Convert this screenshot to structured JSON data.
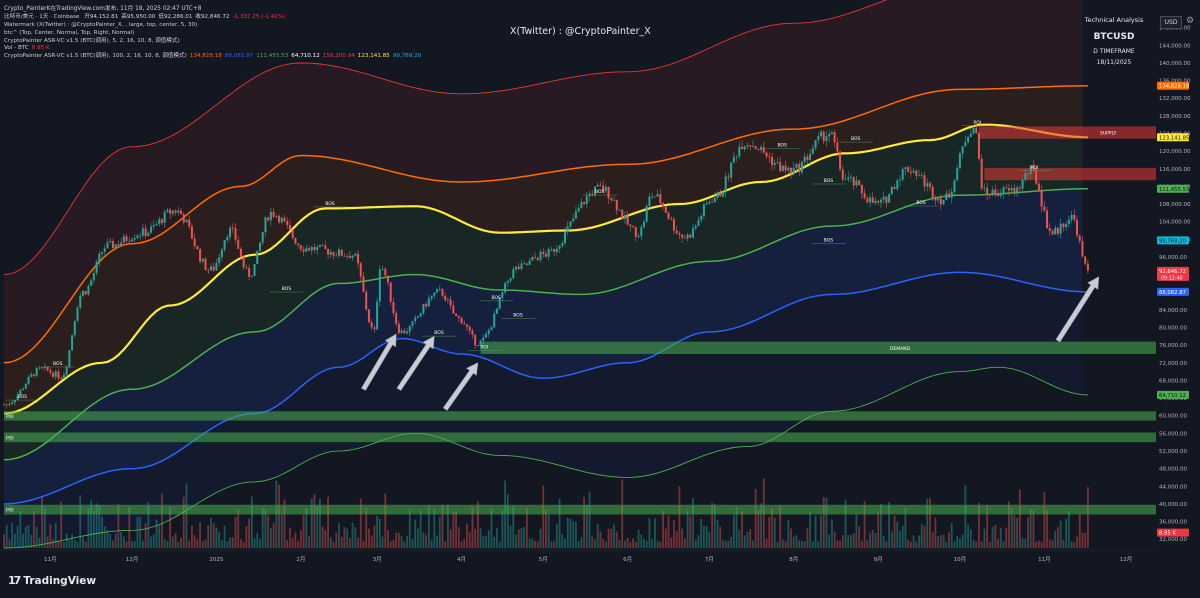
{
  "header": {
    "title_line": "比特币/美元 · 1天 · Coinbase",
    "ohlc": [
      {
        "label": "开",
        "value": "94,152.81",
        "color": "#d1d4dc"
      },
      {
        "label": "高",
        "value": "95,950.00",
        "color": "#d1d4dc"
      },
      {
        "label": "低",
        "value": "92,286.01",
        "color": "#d1d4dc"
      },
      {
        "label": "收",
        "value": "92,846.72",
        "color": "#d1d4dc"
      },
      {
        "label": "",
        "value": "-1,337.25 (-1.42%)",
        "color": "#f23645"
      }
    ],
    "indicators": [
      {
        "text": "Watermark (X(Twitter) : @CryptoPainter_X, , large, top, center, 5, 30)",
        "values": []
      },
      {
        "text": "btc^ (Top, Center, Normal, Top, Right, Normal)",
        "values": []
      },
      {
        "text": "CryptoPainter ASR-VC v1.5 (BTC(调用), 5, 2, 16, 10, 8, 调值模式)",
        "values": []
      },
      {
        "text": "Vol - BTC",
        "values": [
          {
            "v": "8.95 K",
            "c": "#f23645"
          }
        ]
      },
      {
        "text": "CryptoPainter ASR-VC v1.5 (BTC(调用), 100, 2, 16, 10, 8, 调值模式)",
        "values": [
          {
            "v": "134,828.18",
            "c": "#ff6d00"
          },
          {
            "v": "88,082.87",
            "c": "#2962ff"
          },
          {
            "v": "111,455.53",
            "c": "#4caf50"
          },
          {
            "v": "64,710.12",
            "c": "#ffffff"
          },
          {
            "v": "158,200.94",
            "c": "#f23645"
          },
          {
            "v": "123,141.85",
            "c": "#ffeb3b"
          },
          {
            "v": "99,769.20",
            "c": "#00bcd4"
          }
        ]
      }
    ],
    "snapshot": "Crypto_PainterK在TradingView.com发布, 11月 18, 2025 02:47 UTC+8"
  },
  "watermark": "X(Twitter) : @CryptoPainter_X",
  "infobox": {
    "label": "Technical Analysis",
    "symbol": "BTCUSD",
    "timeframe": "D TIMEFRAME",
    "date": "18/11/2025"
  },
  "currency": "USD",
  "brand": "TradingView",
  "chart_data": {
    "type": "line",
    "title": "",
    "ylim": [
      30000,
      152000
    ],
    "y_ticks": [
      {
        "value": 148000,
        "label": "148,000.00"
      },
      {
        "value": 144000,
        "label": "144,000.00"
      },
      {
        "value": 140000,
        "label": "140,000.00"
      },
      {
        "value": 136000,
        "label": "136,000.00"
      },
      {
        "value": 132000,
        "label": "132,000.00"
      },
      {
        "value": 128000,
        "label": "128,000.00"
      },
      {
        "value": 124000,
        "label": "124,000.00"
      },
      {
        "value": 120000,
        "label": "120,000.00"
      },
      {
        "value": 116000,
        "label": "116,000.00"
      },
      {
        "value": 112000,
        "label": "112,000.00"
      },
      {
        "value": 108000,
        "label": "108,000.00"
      },
      {
        "value": 104000,
        "label": "104,000.00"
      },
      {
        "value": 100000,
        "label": "100,000.00"
      },
      {
        "value": 96000,
        "label": "96,000.00"
      },
      {
        "value": 92000,
        "label": "92,000.00"
      },
      {
        "value": 88000,
        "label": "88,000.00"
      },
      {
        "value": 84000,
        "label": "84,000.00"
      },
      {
        "value": 80000,
        "label": "80,000.00"
      },
      {
        "value": 76000,
        "label": "76,000.00"
      },
      {
        "value": 72000,
        "label": "72,000.00"
      },
      {
        "value": 68000,
        "label": "68,000.00"
      },
      {
        "value": 64000,
        "label": "64,000.00"
      },
      {
        "value": 60000,
        "label": "60,000.00"
      },
      {
        "value": 56000,
        "label": "56,000.00"
      },
      {
        "value": 52000,
        "label": "52,000.00"
      },
      {
        "value": 48000,
        "label": "48,000.00"
      },
      {
        "value": 44000,
        "label": "44,000.00"
      },
      {
        "value": 40000,
        "label": "40,000.00"
      },
      {
        "value": 36000,
        "label": "36,000.00"
      },
      {
        "value": 32000,
        "label": "32,000.00"
      }
    ],
    "x_ticks": [
      {
        "date": "2024-11-01",
        "label": "11月"
      },
      {
        "date": "2024-12-01",
        "label": "12月"
      },
      {
        "date": "2025-01-01",
        "label": "2025"
      },
      {
        "date": "2025-02-01",
        "label": "2月"
      },
      {
        "date": "2025-03-01",
        "label": "3月"
      },
      {
        "date": "2025-04-01",
        "label": "4月"
      },
      {
        "date": "2025-05-01",
        "label": "5月"
      },
      {
        "date": "2025-06-01",
        "label": "6月"
      },
      {
        "date": "2025-07-01",
        "label": "7月"
      },
      {
        "date": "2025-08-01",
        "label": "8月"
      },
      {
        "date": "2025-09-01",
        "label": "9月"
      },
      {
        "date": "2025-10-01",
        "label": "10月"
      },
      {
        "date": "2025-11-01",
        "label": "11月"
      },
      {
        "date": "2025-12-01",
        "label": "12月"
      }
    ],
    "x_range": [
      "2024-10-15",
      "2025-12-12"
    ],
    "price_waypoints": [
      [
        "2024-10-15",
        62500
      ],
      [
        "2024-10-29",
        70500
      ],
      [
        "2024-11-05",
        69000
      ],
      [
        "2024-11-13",
        88000
      ],
      [
        "2024-11-22",
        98500
      ],
      [
        "2024-12-05",
        101500
      ],
      [
        "2024-12-17",
        106500
      ],
      [
        "2024-12-30",
        93000
      ],
      [
        "2025-01-06",
        102000
      ],
      [
        "2025-01-13",
        92000
      ],
      [
        "2025-01-21",
        106000
      ],
      [
        "2025-02-03",
        98000
      ],
      [
        "2025-02-20",
        96500
      ],
      [
        "2025-02-28",
        79000
      ],
      [
        "2025-03-02",
        94000
      ],
      [
        "2025-03-10",
        79000
      ],
      [
        "2025-03-24",
        88000
      ],
      [
        "2025-03-31",
        82000
      ],
      [
        "2025-04-07",
        76500
      ],
      [
        "2025-04-22",
        93500
      ],
      [
        "2025-05-01",
        96500
      ],
      [
        "2025-05-22",
        111500
      ],
      [
        "2025-06-05",
        101500
      ],
      [
        "2025-06-10",
        110000
      ],
      [
        "2025-06-22",
        100500
      ],
      [
        "2025-07-03",
        109500
      ],
      [
        "2025-07-14",
        122000
      ],
      [
        "2025-07-31",
        115500
      ],
      [
        "2025-08-14",
        124000
      ],
      [
        "2025-08-20",
        113500
      ],
      [
        "2025-09-01",
        108000
      ],
      [
        "2025-09-12",
        116000
      ],
      [
        "2025-09-25",
        109000
      ],
      [
        "2025-10-06",
        125500
      ],
      [
        "2025-10-10",
        110500
      ],
      [
        "2025-10-21",
        111000
      ],
      [
        "2025-10-27",
        115500
      ],
      [
        "2025-11-04",
        101500
      ],
      [
        "2025-11-11",
        105000
      ],
      [
        "2025-11-17",
        92846.72
      ]
    ],
    "band_series": [
      {
        "name": "outer-upper",
        "color": "#e53935",
        "points": [
          [
            "2024-10-15",
            92000
          ],
          [
            "2024-12-01",
            121000
          ],
          [
            "2025-02-01",
            140000
          ],
          [
            "2025-04-01",
            133000
          ],
          [
            "2025-06-01",
            138000
          ],
          [
            "2025-08-01",
            149000
          ],
          [
            "2025-10-01",
            158000
          ],
          [
            "2025-12-12",
            165000
          ]
        ]
      },
      {
        "name": "orange-upper",
        "color": "#ff6d00",
        "points": [
          [
            "2024-10-15",
            72000
          ],
          [
            "2024-12-01",
            99000
          ],
          [
            "2025-01-10",
            112000
          ],
          [
            "2025-02-01",
            119000
          ],
          [
            "2025-04-01",
            113000
          ],
          [
            "2025-06-01",
            117000
          ],
          [
            "2025-08-01",
            125000
          ],
          [
            "2025-10-01",
            134000
          ],
          [
            "2025-11-17",
            134800
          ]
        ]
      },
      {
        "name": "yellow-mid",
        "color": "#ffeb3b",
        "points": [
          [
            "2024-10-15",
            60500
          ],
          [
            "2024-11-20",
            72000
          ],
          [
            "2024-12-15",
            85000
          ],
          [
            "2025-01-15",
            96500
          ],
          [
            "2025-02-10",
            107000
          ],
          [
            "2025-03-15",
            107500
          ],
          [
            "2025-04-15",
            101500
          ],
          [
            "2025-05-10",
            102000
          ],
          [
            "2025-06-20",
            108000
          ],
          [
            "2025-07-20",
            113000
          ],
          [
            "2025-08-20",
            119500
          ],
          [
            "2025-09-20",
            122500
          ],
          [
            "2025-10-10",
            126000
          ],
          [
            "2025-11-17",
            123141.85
          ]
        ]
      },
      {
        "name": "green-lower",
        "color": "#4caf50",
        "points": [
          [
            "2024-10-15",
            50000
          ],
          [
            "2024-12-01",
            66000
          ],
          [
            "2025-01-15",
            79000
          ],
          [
            "2025-02-15",
            90000
          ],
          [
            "2025-03-15",
            92000
          ],
          [
            "2025-04-15",
            88500
          ],
          [
            "2025-05-15",
            87500
          ],
          [
            "2025-07-01",
            95000
          ],
          [
            "2025-08-15",
            103000
          ],
          [
            "2025-10-01",
            110000
          ],
          [
            "2025-11-17",
            111455.53
          ]
        ]
      },
      {
        "name": "blue-lower",
        "color": "#2962ff",
        "points": [
          [
            "2024-10-15",
            40000
          ],
          [
            "2024-12-01",
            48000
          ],
          [
            "2025-01-15",
            60500
          ],
          [
            "2025-02-15",
            71000
          ],
          [
            "2025-03-10",
            77500
          ],
          [
            "2025-04-01",
            74000
          ],
          [
            "2025-05-01",
            68500
          ],
          [
            "2025-06-01",
            72000
          ],
          [
            "2025-07-01",
            79000
          ],
          [
            "2025-08-15",
            87500
          ],
          [
            "2025-10-01",
            92500
          ],
          [
            "2025-11-17",
            88082.87
          ]
        ]
      },
      {
        "name": "green-outer-lower",
        "color": "#4caf50",
        "points": [
          [
            "2024-10-15",
            30000
          ],
          [
            "2024-12-01",
            34000
          ],
          [
            "2025-01-15",
            45000
          ],
          [
            "2025-02-15",
            52000
          ],
          [
            "2025-03-15",
            56000
          ],
          [
            "2025-04-15",
            51000
          ],
          [
            "2025-06-01",
            46000
          ],
          [
            "2025-07-15",
            53000
          ],
          [
            "2025-08-15",
            61000
          ],
          [
            "2025-10-01",
            70000
          ],
          [
            "2025-10-15",
            71000
          ],
          [
            "2025-11-17",
            64710.12
          ]
        ]
      }
    ],
    "zones": [
      {
        "label": "SUPPLY",
        "y1": 122800,
        "y2": 125600,
        "from": "2025-10-08",
        "color": "#e53935"
      },
      {
        "label": "",
        "y1": 113400,
        "y2": 116200,
        "from": "2025-10-10",
        "color": "#e53935"
      },
      {
        "label": "DEMAND",
        "y1": 74000,
        "y2": 76800,
        "from": "2025-04-08",
        "color": "#4caf50"
      },
      {
        "label": "POI",
        "y1": 58900,
        "y2": 61000,
        "from": "2024-10-15",
        "color": "#4caf50"
      },
      {
        "label": "POI",
        "y1": 54000,
        "y2": 56200,
        "from": "2024-10-15",
        "color": "#4caf50"
      },
      {
        "label": "POI",
        "y1": 37600,
        "y2": 39800,
        "from": "2024-10-15",
        "color": "#4caf50"
      }
    ],
    "annotations": [
      {
        "text": "BOS",
        "date": "2024-10-20",
        "y": 64000
      },
      {
        "text": "BOS",
        "date": "2024-11-02",
        "y": 71500
      },
      {
        "text": "BOS",
        "date": "2025-01-25",
        "y": 88500
      },
      {
        "text": "BOS",
        "date": "2025-02-10",
        "y": 107800
      },
      {
        "text": "BOS",
        "date": "2025-03-22",
        "y": 78500
      },
      {
        "text": "BOS",
        "date": "2025-04-12",
        "y": 86500
      },
      {
        "text": "BOS",
        "date": "2025-04-20",
        "y": 82500
      },
      {
        "text": "BOS",
        "date": "2025-05-20",
        "y": 110500
      },
      {
        "text": "BOS",
        "date": "2025-07-26",
        "y": 121000
      },
      {
        "text": "BOS",
        "date": "2025-08-12",
        "y": 113000
      },
      {
        "text": "BOS",
        "date": "2025-08-22",
        "y": 122500
      },
      {
        "text": "BOS",
        "date": "2025-09-15",
        "y": 108000
      },
      {
        "text": "BOS",
        "date": "2025-08-12",
        "y": 99500
      },
      {
        "text": "POI",
        "date": "2025-10-06",
        "y": 126200
      },
      {
        "text": "POI",
        "date": "2025-10-27",
        "y": 116000
      },
      {
        "text": "POI",
        "date": "2025-04-08",
        "y": 75200
      }
    ],
    "price_labels": [
      {
        "value": 134828.18,
        "label": "134,828.18",
        "color": "#ff6d00"
      },
      {
        "value": 123141.85,
        "label": "123,141.85",
        "color": "#ffeb3b"
      },
      {
        "value": 111455.53,
        "label": "111,455.53",
        "color": "#4caf50"
      },
      {
        "value": 99769.2,
        "label": "99,769.20",
        "color": "#00bcd4"
      },
      {
        "value": 92846.72,
        "label": "92,846.72",
        "color": "#f23645",
        "sub": "09:12:40"
      },
      {
        "value": 88082.87,
        "label": "88,082.87",
        "color": "#2962ff"
      },
      {
        "value": 64710.12,
        "label": "64,710.12",
        "color": "#4caf50"
      },
      {
        "value": 33500,
        "label": "8.95 K",
        "color": "#f23645"
      }
    ],
    "arrows": [
      {
        "from": [
          "2025-02-24",
          66000
        ],
        "to": [
          "2025-03-08",
          78500
        ]
      },
      {
        "from": [
          "2025-03-09",
          66000
        ],
        "to": [
          "2025-03-22",
          78000
        ]
      },
      {
        "from": [
          "2025-03-26",
          61500
        ],
        "to": [
          "2025-04-07",
          72000
        ]
      },
      {
        "from": [
          "2025-11-06",
          77000
        ],
        "to": [
          "2025-11-21",
          91500
        ]
      }
    ],
    "volume_baseline": 30000,
    "colors": {
      "up": "#26a69a",
      "down": "#ef5350",
      "bg": "#131722"
    }
  }
}
